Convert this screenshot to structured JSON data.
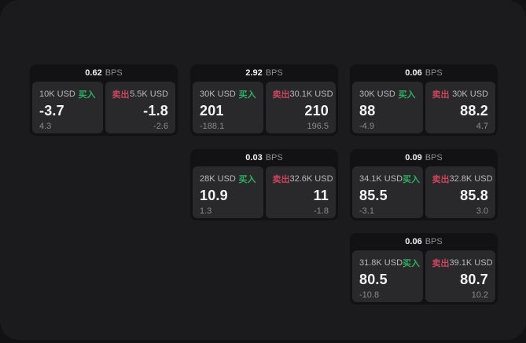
{
  "labels": {
    "bps": "BPS",
    "buy": "买入",
    "sell": "卖出"
  },
  "colors": {
    "window_bg": "#1b1b1d",
    "card_bg": "#121214",
    "panel_bg": "#29292b",
    "buy_green": "#2fae62",
    "sell_red": "#c9455c",
    "value_white": "#f4f4f4",
    "muted_gray": "#8a8a8a"
  },
  "cards": [
    {
      "bps": "0.62",
      "buy": {
        "size": "10K USD",
        "value": "-3.7",
        "sub": "4.3"
      },
      "sell": {
        "size": "5.5K USD",
        "value": "-1.8",
        "sub": "-2.6"
      }
    },
    {
      "bps": "2.92",
      "buy": {
        "size": "30K USD",
        "value": "201",
        "sub": "-188.1"
      },
      "sell": {
        "size": "30.1K USD",
        "value": "210",
        "sub": "196.5"
      }
    },
    {
      "bps": "0.06",
      "buy": {
        "size": "30K USD",
        "value": "88",
        "sub": "-4.9"
      },
      "sell": {
        "size": "30K USD",
        "value": "88.2",
        "sub": "4.7"
      }
    },
    {
      "bps": "0.03",
      "buy": {
        "size": "28K USD",
        "value": "10.9",
        "sub": "1.3"
      },
      "sell": {
        "size": "32.6K USD",
        "value": "11",
        "sub": "-1.8"
      }
    },
    {
      "bps": "0.09",
      "buy": {
        "size": "34.1K USD",
        "value": "85.5",
        "sub": "-3.1"
      },
      "sell": {
        "size": "32.8K USD",
        "value": "85.8",
        "sub": "3.0"
      }
    },
    {
      "bps": "0.06",
      "buy": {
        "size": "31.8K USD",
        "value": "80.5",
        "sub": "-10.8"
      },
      "sell": {
        "size": "39.1K USD",
        "value": "80.7",
        "sub": "10.2"
      }
    }
  ]
}
